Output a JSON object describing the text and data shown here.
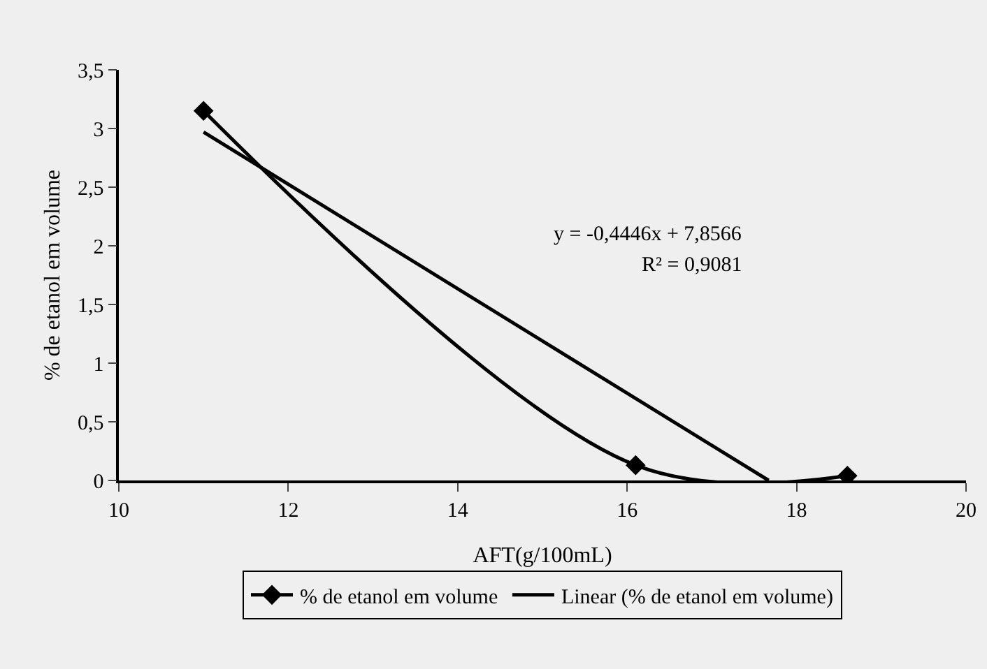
{
  "chart_data": {
    "type": "line",
    "xlabel": "AFT(g/100mL)",
    "ylabel": "% de etanol em volume",
    "xlim": [
      10,
      20
    ],
    "xticks": [
      10,
      12,
      14,
      16,
      18,
      20
    ],
    "ylim": [
      0,
      3.5
    ],
    "yticks": [
      0,
      {
        "value": 0.5,
        "label": "0,5"
      },
      1,
      {
        "value": 1.5,
        "label": "1,5"
      },
      2,
      {
        "value": 2.5,
        "label": "2,5"
      },
      3,
      {
        "value": 3.5,
        "label": "3,5"
      }
    ],
    "series": [
      {
        "name": "% de etanol em volume",
        "color": "#000000",
        "x": [
          11,
          16.1,
          18.6
        ],
        "values": [
          3.15,
          0.13,
          0.04
        ],
        "marker": "diamond"
      },
      {
        "name": "Linear (% de etanol em volume)",
        "color": "#000000",
        "x": [
          11,
          17.67
        ],
        "values": [
          2.97,
          0
        ],
        "marker": "none"
      }
    ],
    "annotations": [
      "y = -0,4446x + 7,8566",
      "R² = 0,9081"
    ],
    "line_style": "solid",
    "grid": false,
    "legend": "bottom"
  }
}
